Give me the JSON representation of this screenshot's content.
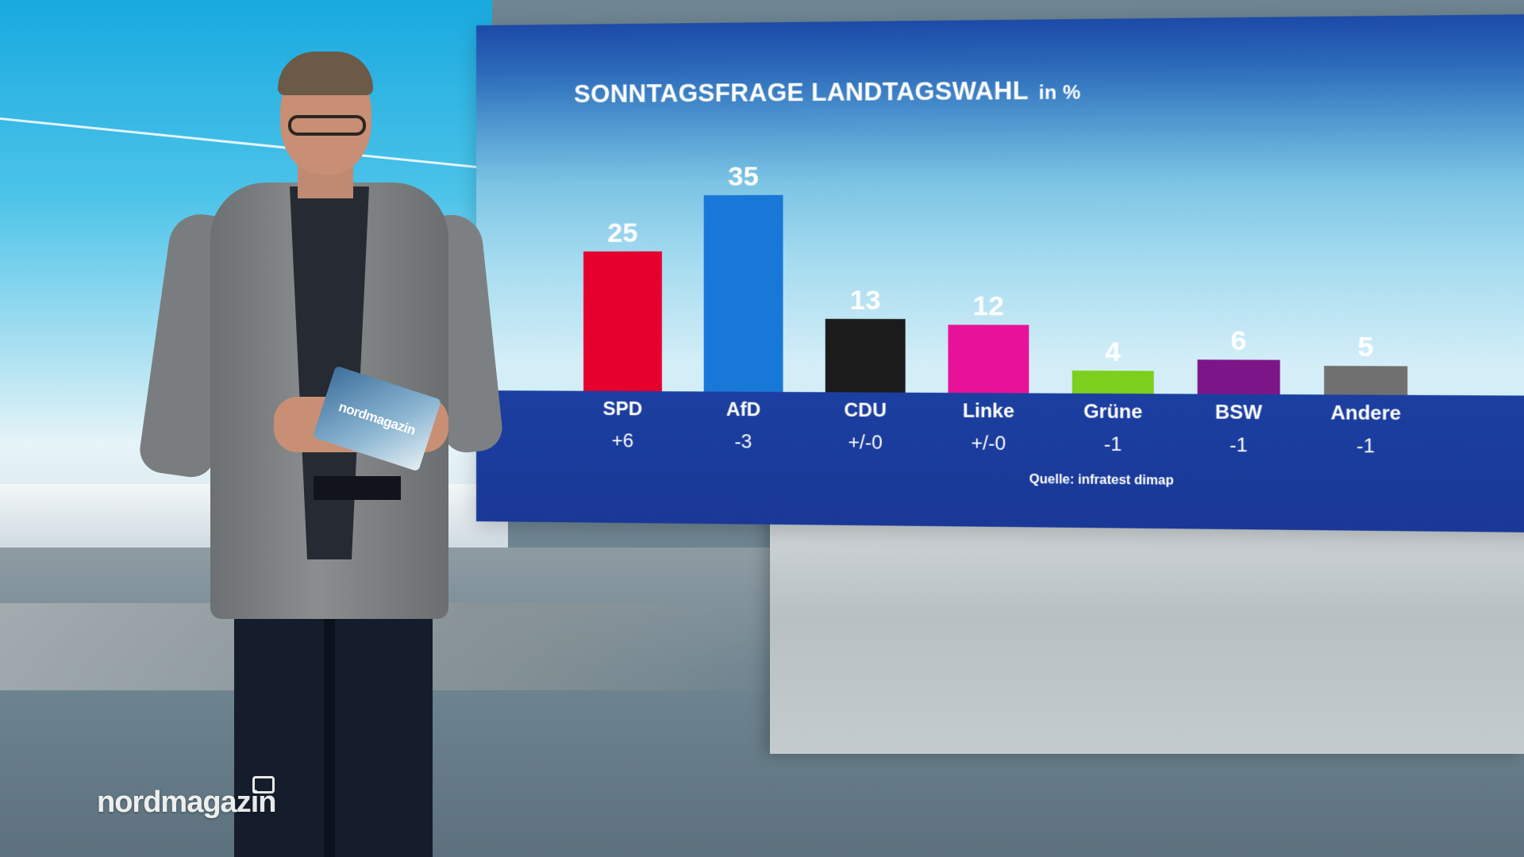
{
  "chart_data": {
    "type": "bar",
    "title": "SONNTAGSFRAGE LANDTAGSWAHL",
    "unit": "in %",
    "categories": [
      "SPD",
      "AfD",
      "CDU",
      "Linke",
      "Grüne",
      "BSW",
      "Andere"
    ],
    "values": [
      25,
      35,
      13,
      12,
      4,
      6,
      5
    ],
    "value_labels": [
      "25",
      "35",
      "13",
      "12",
      "4",
      "6",
      "5"
    ],
    "changes": [
      "+6",
      "-3",
      "+/-0",
      "+/-0",
      "-1",
      "-1",
      "-1"
    ],
    "colors": [
      "#e5002e",
      "#1878d8",
      "#1b1b1b",
      "#e8129a",
      "#7ccf1c",
      "#7c1688",
      "#707070"
    ],
    "ylim": [
      0,
      40
    ],
    "xlabel": "",
    "ylabel": "",
    "source": "Quelle: infratest dimap"
  },
  "logo": {
    "text": "nordmagazin"
  },
  "presenter": {
    "folder_text": "nordmagazin"
  }
}
